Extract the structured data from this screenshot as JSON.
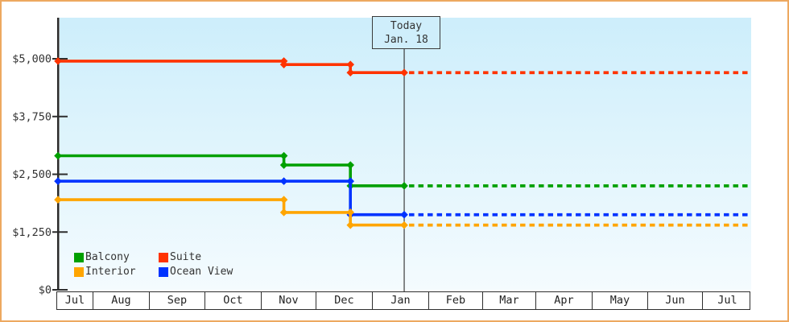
{
  "window": {
    "background": "#ffffff",
    "border_color": "#eda860"
  },
  "today_marker": {
    "line1": "Today",
    "line2": "Jan. 18"
  },
  "legend": {
    "items": [
      {
        "label": "Balcony",
        "color": "#00a000"
      },
      {
        "label": "Suite",
        "color": "#ff3300"
      },
      {
        "label": "Interior",
        "color": "#ffa500"
      },
      {
        "label": "Ocean View",
        "color": "#0033ff"
      }
    ]
  },
  "chart_data": {
    "type": "line",
    "title": "",
    "description": "Stepped price history per cabin category; solid history up to today (Jan. 18), dashed flat projection afterwards",
    "x_axis": {
      "labels": [
        "Jul",
        "Aug",
        "Sep",
        "Oct",
        "Nov",
        "Dec",
        "Jan",
        "Feb",
        "Mar",
        "Apr",
        "May",
        "Jun",
        "Jul"
      ]
    },
    "y_axis": {
      "range": [
        0,
        5000
      ],
      "ticks": [
        {
          "label": "$5,000",
          "value": 5000
        },
        {
          "label": "$3,750",
          "value": 3750
        },
        {
          "label": "$2,500",
          "value": 2500
        },
        {
          "label": "$1,250",
          "value": 1250
        },
        {
          "label": "$0",
          "value": 0
        }
      ]
    },
    "grid": false,
    "legend_position": "bottom-left",
    "today": {
      "date": "Jan. 18",
      "month_position": 6.62
    },
    "series": [
      {
        "name": "Suite",
        "color": "#ff3300",
        "points": [
          {
            "date": "mid-Jul",
            "m": 0.37,
            "price": 4950
          },
          {
            "date": "Nov 14",
            "m": 4.45,
            "price": 4950
          },
          {
            "date": "Nov 14",
            "m": 4.45,
            "price": 4875
          },
          {
            "date": "Dec 20",
            "m": 5.65,
            "price": 4875
          },
          {
            "date": "Dec 20",
            "m": 5.65,
            "price": 4700
          },
          {
            "date": "Jan 18",
            "m": 6.62,
            "price": 4700
          }
        ],
        "projected_price": 4700
      },
      {
        "name": "Balcony",
        "color": "#00a000",
        "points": [
          {
            "date": "mid-Jul",
            "m": 0.37,
            "price": 2900
          },
          {
            "date": "Nov 14",
            "m": 4.45,
            "price": 2900
          },
          {
            "date": "Nov 14",
            "m": 4.45,
            "price": 2700
          },
          {
            "date": "Dec 20",
            "m": 5.65,
            "price": 2700
          },
          {
            "date": "Dec 20",
            "m": 5.65,
            "price": 2250
          },
          {
            "date": "Jan 18",
            "m": 6.62,
            "price": 2250
          }
        ],
        "projected_price": 2250
      },
      {
        "name": "Ocean View",
        "color": "#0033ff",
        "points": [
          {
            "date": "mid-Jul",
            "m": 0.37,
            "price": 2350
          },
          {
            "date": "Nov 14",
            "m": 4.45,
            "price": 2350
          },
          {
            "date": "Dec 20",
            "m": 5.65,
            "price": 2350
          },
          {
            "date": "Dec 20",
            "m": 5.65,
            "price": 1625
          },
          {
            "date": "Jan 18",
            "m": 6.62,
            "price": 1625
          }
        ],
        "projected_price": 1625
      },
      {
        "name": "Interior",
        "color": "#ffa500",
        "points": [
          {
            "date": "mid-Jul",
            "m": 0.37,
            "price": 1950
          },
          {
            "date": "Nov 14",
            "m": 4.45,
            "price": 1950
          },
          {
            "date": "Nov 14",
            "m": 4.45,
            "price": 1675
          },
          {
            "date": "Dec 20",
            "m": 5.65,
            "price": 1675
          },
          {
            "date": "Dec 20",
            "m": 5.65,
            "price": 1400
          },
          {
            "date": "Jan 18",
            "m": 6.62,
            "price": 1400
          }
        ],
        "projected_price": 1400
      }
    ]
  }
}
